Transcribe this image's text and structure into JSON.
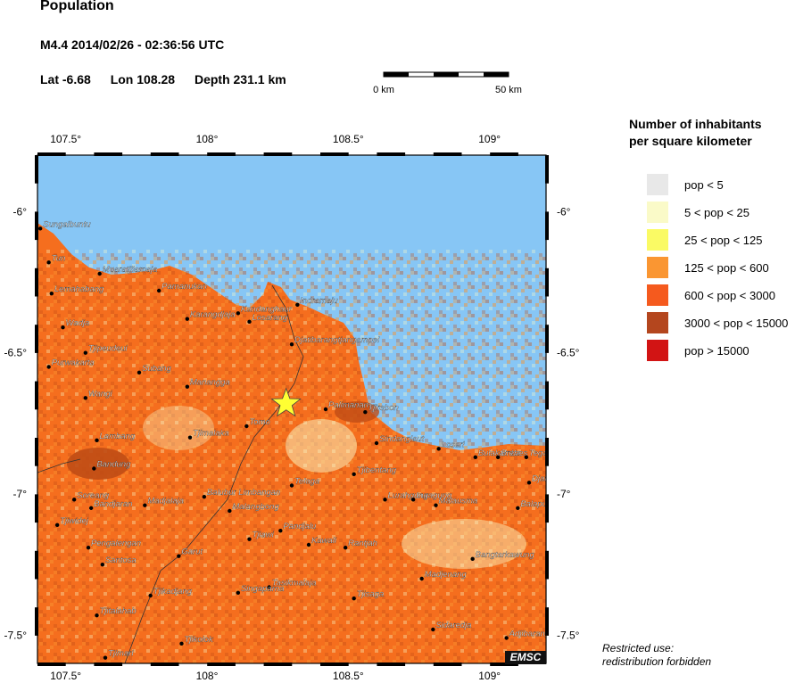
{
  "header": {
    "title": "Population",
    "event": "M4.4  2014/02/26 - 02:36:56 UTC",
    "lat": "Lat -6.68",
    "lon": "Lon 108.28",
    "depth": "Depth 231.1 km"
  },
  "scale": {
    "left_label": "0 km",
    "right_label": "50 km"
  },
  "map": {
    "lon_range": [
      107.4,
      109.2
    ],
    "lat_range": [
      -7.6,
      -5.8
    ],
    "lon_ticks": [
      {
        "value": 107.5,
        "label": "107.5°"
      },
      {
        "value": 108.0,
        "label": "108°"
      },
      {
        "value": 108.5,
        "label": "108.5°"
      },
      {
        "value": 109.0,
        "label": "109°"
      }
    ],
    "lat_ticks": [
      {
        "value": -6.0,
        "label": "-6°"
      },
      {
        "value": -6.5,
        "label": "-6.5°"
      },
      {
        "value": -7.0,
        "label": "-7°"
      },
      {
        "value": -7.5,
        "label": "-7.5°"
      }
    ],
    "epicenter": {
      "lon": 108.28,
      "lat": -6.68
    },
    "colors": {
      "sea": "#87c6f5",
      "land": "#f56e1e",
      "dense": "#c04c15",
      "frame": "#000000",
      "epicenter": "#ffff33"
    },
    "cities": [
      {
        "name": "Sungaibuntu",
        "lon": 107.41,
        "lat": -6.06
      },
      {
        "name": "Tun",
        "lon": 107.44,
        "lat": -6.18
      },
      {
        "name": "Muaratjilamaja",
        "lon": 107.62,
        "lat": -6.22
      },
      {
        "name": "Lemahabang",
        "lon": 107.45,
        "lat": -6.29
      },
      {
        "name": "Pamanukan",
        "lon": 107.83,
        "lat": -6.28
      },
      {
        "name": "Wadja",
        "lon": 107.49,
        "lat": -6.41
      },
      {
        "name": "Karangdjaja",
        "lon": 107.93,
        "lat": -6.38
      },
      {
        "name": "Kandanghaur",
        "lon": 108.11,
        "lat": -6.36
      },
      {
        "name": "Losarang",
        "lon": 108.15,
        "lat": -6.39
      },
      {
        "name": "Indramaju",
        "lon": 108.32,
        "lat": -6.33
      },
      {
        "name": "Tjipeudeui",
        "lon": 107.57,
        "lat": -6.5
      },
      {
        "name": "Djatibarangtjangampel",
        "lon": 108.3,
        "lat": -6.47
      },
      {
        "name": "Purwakarta",
        "lon": 107.44,
        "lat": -6.55
      },
      {
        "name": "Subang",
        "lon": 107.76,
        "lat": -6.57
      },
      {
        "name": "Manangga",
        "lon": 107.93,
        "lat": -6.62
      },
      {
        "name": "Wangi",
        "lon": 107.57,
        "lat": -6.66
      },
      {
        "name": "Palimanan",
        "lon": 108.42,
        "lat": -6.7
      },
      {
        "name": "Tjirebon",
        "lon": 108.56,
        "lat": -6.71
      },
      {
        "name": "Tomo",
        "lon": 108.14,
        "lat": -6.76
      },
      {
        "name": "Lambang",
        "lon": 107.61,
        "lat": -6.81
      },
      {
        "name": "Tjimalaka",
        "lon": 107.94,
        "lat": -6.8
      },
      {
        "name": "Sindanglaut",
        "lon": 108.6,
        "lat": -6.82
      },
      {
        "name": "Losari",
        "lon": 108.82,
        "lat": -6.84
      },
      {
        "name": "Bulakamba",
        "lon": 108.95,
        "lat": -6.87
      },
      {
        "name": "Brebes",
        "lon": 109.03,
        "lat": -6.87
      },
      {
        "name": "Tegal",
        "lon": 109.13,
        "lat": -6.87
      },
      {
        "name": "Bandung",
        "lon": 107.6,
        "lat": -6.91
      },
      {
        "name": "Tjibentang",
        "lon": 108.52,
        "lat": -6.93
      },
      {
        "name": "Djatibarang",
        "lon": 109.14,
        "lat": -6.96
      },
      {
        "name": "Telaga",
        "lon": 108.3,
        "lat": -6.97
      },
      {
        "name": "Soreang",
        "lon": 107.53,
        "lat": -7.02
      },
      {
        "name": "Balubur Limbangan",
        "lon": 107.99,
        "lat": -7.01
      },
      {
        "name": "Lurahgung",
        "lon": 108.63,
        "lat": -7.02
      },
      {
        "name": "Luragung",
        "lon": 108.73,
        "lat": -7.02
      },
      {
        "name": "Malausma",
        "lon": 108.81,
        "lat": -7.04
      },
      {
        "name": "Bandjaran",
        "lon": 107.59,
        "lat": -7.05
      },
      {
        "name": "Madjalaja",
        "lon": 107.78,
        "lat": -7.04
      },
      {
        "name": "Malangbong",
        "lon": 108.08,
        "lat": -7.06
      },
      {
        "name": "Balapulang",
        "lon": 109.1,
        "lat": -7.05
      },
      {
        "name": "Tjiwidej",
        "lon": 107.47,
        "lat": -7.11
      },
      {
        "name": "Pandjalu",
        "lon": 108.26,
        "lat": -7.13
      },
      {
        "name": "Tjiawi",
        "lon": 108.15,
        "lat": -7.16
      },
      {
        "name": "Kawali",
        "lon": 108.36,
        "lat": -7.18
      },
      {
        "name": "Rantjah",
        "lon": 108.49,
        "lat": -7.19
      },
      {
        "name": "Pengalengan",
        "lon": 107.58,
        "lat": -7.19
      },
      {
        "name": "Bangtarkawung",
        "lon": 108.94,
        "lat": -7.23
      },
      {
        "name": "Garut",
        "lon": 107.9,
        "lat": -7.22
      },
      {
        "name": "Santosa",
        "lon": 107.63,
        "lat": -7.25
      },
      {
        "name": "Madjenang",
        "lon": 108.76,
        "lat": -7.3
      },
      {
        "name": "Tasikmalaja",
        "lon": 108.22,
        "lat": -7.33
      },
      {
        "name": "Tjikadjang",
        "lon": 107.8,
        "lat": -7.36
      },
      {
        "name": "Singaparna",
        "lon": 108.11,
        "lat": -7.35
      },
      {
        "name": "Tjisaga",
        "lon": 108.52,
        "lat": -7.37
      },
      {
        "name": "Tjitalahab",
        "lon": 107.61,
        "lat": -7.43
      },
      {
        "name": "Sidaredja",
        "lon": 108.8,
        "lat": -7.48
      },
      {
        "name": "Tjikolok",
        "lon": 107.91,
        "lat": -7.53
      },
      {
        "name": "Adjibarang",
        "lon": 109.06,
        "lat": -7.51
      },
      {
        "name": "Tjimari",
        "lon": 107.64,
        "lat": -7.58
      }
    ]
  },
  "legend": {
    "title_line1": "Number of inhabitants",
    "title_line2": "per square kilometer",
    "items": [
      {
        "label": "pop < 5",
        "color": "#e8e8e8"
      },
      {
        "label": "5 < pop < 25",
        "color": "#fafac8"
      },
      {
        "label": "25 < pop < 125",
        "color": "#fafa64"
      },
      {
        "label": "125 < pop < 600",
        "color": "#fa9632"
      },
      {
        "label": "600 < pop < 3000",
        "color": "#f55a1e"
      },
      {
        "label": "3000 < pop < 15000",
        "color": "#b4461e"
      },
      {
        "label": "pop > 15000",
        "color": "#d21414"
      }
    ]
  },
  "badge": "EMSC",
  "footnote": {
    "line1": "Restricted use:",
    "line2": "redistribution forbidden"
  }
}
